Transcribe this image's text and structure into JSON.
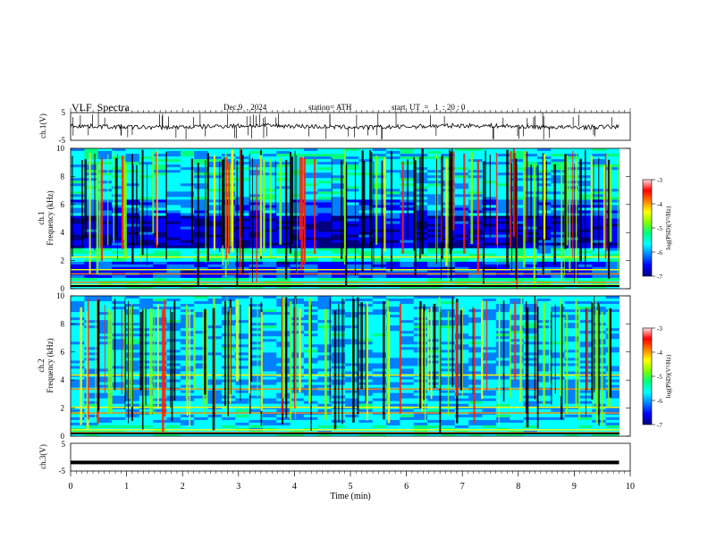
{
  "header": {
    "title": "VLF  Spectra",
    "date": "Dec.9  , 2024",
    "station": "station= ATH",
    "start_ut": "start  UT  =   1  : 20 : 0"
  },
  "chart_data": [
    {
      "type": "line",
      "panel": "ch1-waveform",
      "ylabel": "ch.1(V)",
      "ylim": [
        -5,
        5
      ],
      "yticks": [
        "5",
        "-5"
      ],
      "xlim": [
        0,
        9.8
      ],
      "baseline_value": 0,
      "color": "#000000"
    },
    {
      "type": "heatmap",
      "panel": "ch1-spectrogram",
      "ylabel": "ch.1 Frequency (kHz)",
      "ylim": [
        0,
        10
      ],
      "yticks": [
        "0",
        "2",
        "4",
        "6",
        "8",
        "10"
      ],
      "xlim": [
        0,
        9.8
      ],
      "colorbar": {
        "label": "log(PSD)(V²/Hz)",
        "range": [
          -7,
          -3
        ],
        "ticks": [
          "-3",
          "-4",
          "-5",
          "-6",
          "-7"
        ]
      }
    },
    {
      "type": "heatmap",
      "panel": "ch2-spectrogram",
      "ylabel": "ch.2 Frequency (kHz)",
      "ylim": [
        0,
        10
      ],
      "yticks": [
        "0",
        "2",
        "4",
        "6",
        "8",
        "10"
      ],
      "xlim": [
        0,
        9.8
      ],
      "colorbar": {
        "label": "log(PSD)(V²/Hz)",
        "range": [
          -7,
          -3
        ],
        "ticks": [
          "-3",
          "-4",
          "-5",
          "-6",
          "-7"
        ]
      }
    },
    {
      "type": "line",
      "panel": "ch3-waveform",
      "ylabel": "ch.3(V)",
      "ylim": [
        -5,
        5
      ],
      "yticks": [
        "5",
        "-5"
      ],
      "xlim": [
        0,
        9.8
      ],
      "baseline_value": -1.9,
      "color": "#000000"
    }
  ],
  "xaxis": {
    "label": "Time  (min)",
    "range": [
      0,
      10
    ],
    "ticks": [
      "0",
      "1",
      "2",
      "3",
      "4",
      "5",
      "6",
      "7",
      "8",
      "9",
      "10"
    ]
  },
  "colormap": [
    "#000080",
    "#0000ff",
    "#0080ff",
    "#00ffff",
    "#00ff80",
    "#80ff00",
    "#ffff00",
    "#ff8000",
    "#ff0000",
    "#ffe0e0"
  ]
}
